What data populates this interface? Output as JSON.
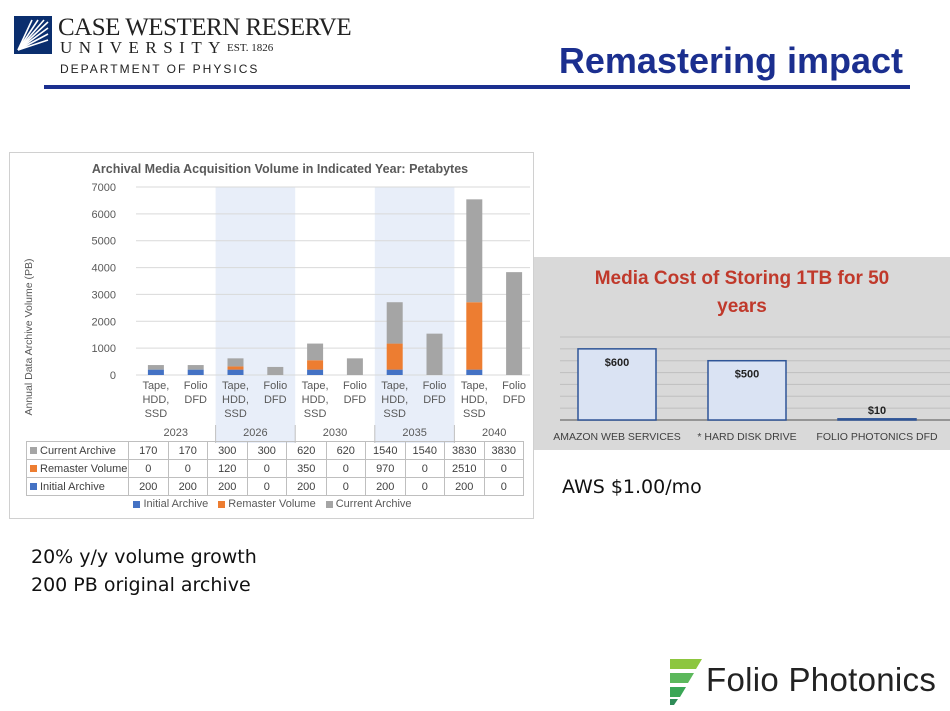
{
  "header": {
    "logo_name": "CASE WESTERN RESERVE",
    "logo_university": "UNIVERSITY",
    "logo_est": "EST. 1826",
    "logo_department": "DEPARTMENT OF PHYSICS",
    "title": "Remastering impact"
  },
  "colors": {
    "accent": "#1b2f8f",
    "initial_archive": "#4472c4",
    "remaster_volume": "#ed7d31",
    "current_archive": "#a5a5a5",
    "highlight_band": "#e8eef9",
    "right_bar_fill": "#dae3f3"
  },
  "chart_data": [
    {
      "type": "bar",
      "stacked": true,
      "title": "Archival Media Acquisition Volume in Indicated Year: Petabytes",
      "ylabel": "Annual Data Archive Volume (PB)",
      "ylim": [
        0,
        7000
      ],
      "yticks": [
        "0",
        "1000",
        "2000",
        "3000",
        "4000",
        "5000",
        "6000",
        "7000"
      ],
      "categories": [
        {
          "label": [
            "Tape,",
            "HDD,",
            "SSD"
          ],
          "year": "2023"
        },
        {
          "label": [
            "Folio",
            "DFD"
          ],
          "year": ""
        },
        {
          "label": [
            "Tape,",
            "HDD,",
            "SSD"
          ],
          "year": "2026"
        },
        {
          "label": [
            "Folio",
            "DFD"
          ],
          "year": ""
        },
        {
          "label": [
            "Tape,",
            "HDD,",
            "SSD"
          ],
          "year": "2030"
        },
        {
          "label": [
            "Folio",
            "DFD"
          ],
          "year": ""
        },
        {
          "label": [
            "Tape,",
            "HDD,",
            "SSD"
          ],
          "year": "2035"
        },
        {
          "label": [
            "Folio",
            "DFD"
          ],
          "year": ""
        },
        {
          "label": [
            "Tape,",
            "HDD,",
            "SSD"
          ],
          "year": "2040"
        },
        {
          "label": [
            "Folio",
            "DFD"
          ],
          "year": ""
        }
      ],
      "years": [
        "2023",
        "2026",
        "2030",
        "2035",
        "2040"
      ],
      "highlighted_years": [
        "2026",
        "2035"
      ],
      "series": [
        {
          "name": "Initial Archive",
          "values": [
            200,
            200,
            200,
            0,
            200,
            0,
            200,
            0,
            200,
            0
          ]
        },
        {
          "name": "Remaster Volume",
          "values": [
            0,
            0,
            120,
            0,
            350,
            0,
            970,
            0,
            2510,
            0
          ]
        },
        {
          "name": "Current Archive",
          "values": [
            170,
            170,
            300,
            300,
            620,
            620,
            1540,
            1540,
            3830,
            3830
          ]
        }
      ],
      "table_rows": [
        {
          "name": "Current Archive",
          "values": [
            "170",
            "170",
            "300",
            "300",
            "620",
            "620",
            "1540",
            "1540",
            "3830",
            "3830"
          ]
        },
        {
          "name": "Remaster Volume",
          "values": [
            "0",
            "0",
            "120",
            "0",
            "350",
            "0",
            "970",
            "0",
            "2510",
            "0"
          ]
        },
        {
          "name": "Initial Archive",
          "values": [
            "200",
            "200",
            "200",
            "0",
            "200",
            "0",
            "200",
            "0",
            "200",
            "0"
          ]
        }
      ],
      "legend": [
        "Initial Archive",
        "Remaster Volume",
        "Current Archive"
      ],
      "legend_position": "bottom",
      "grid": true
    },
    {
      "type": "bar",
      "title": "Media Cost of Storing 1TB for 50 years",
      "title_lines": [
        "Media Cost of Storing 1TB for 50",
        "years"
      ],
      "categories": [
        "AMAZON WEB SERVICES",
        "* HARD DISK DRIVE",
        "FOLIO PHOTONICS DFD"
      ],
      "values": [
        600,
        500,
        10
      ],
      "data_labels": [
        "$600",
        "$500",
        "$10"
      ],
      "ylim": [
        0,
        700
      ],
      "grid": true
    }
  ],
  "notes": {
    "aws": "AWS $1.00/mo",
    "line1": "20% y/y volume growth",
    "line2": "200 PB original archive"
  },
  "footer": {
    "brand": "Folio Photonics"
  }
}
